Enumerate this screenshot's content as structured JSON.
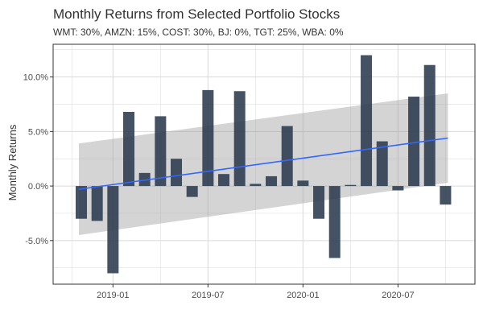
{
  "chart_data": {
    "type": "bar",
    "title": "Monthly Returns from Selected Portfolio Stocks",
    "subtitle": "WMT: 30%, AMZN: 15%, COST: 30%, BJ: 0%, TGT: 25%, WBA: 0%",
    "xlabel": "",
    "ylabel": "Monthly Returns",
    "x_ticks": [
      "2019-01",
      "2019-07",
      "2020-01",
      "2020-07"
    ],
    "y_ticks": [
      "-5.0%",
      "0.0%",
      "5.0%",
      "10.0%"
    ],
    "y_tick_values": [
      -5,
      0,
      5,
      10
    ],
    "ylim": [
      -9,
      13
    ],
    "categories": [
      "2018-11",
      "2018-12",
      "2019-01",
      "2019-02",
      "2019-03",
      "2019-04",
      "2019-05",
      "2019-06",
      "2019-07",
      "2019-08",
      "2019-09",
      "2019-10",
      "2019-11",
      "2019-12",
      "2020-01",
      "2020-02",
      "2020-03",
      "2020-04",
      "2020-05",
      "2020-06",
      "2020-07",
      "2020-08",
      "2020-09",
      "2020-10"
    ],
    "values": [
      -3.0,
      -3.2,
      -8.0,
      6.8,
      1.2,
      6.4,
      2.5,
      -1.0,
      8.8,
      1.1,
      8.7,
      0.2,
      0.9,
      5.5,
      0.5,
      -3.0,
      -6.6,
      0.1,
      12.0,
      4.1,
      -0.4,
      8.2,
      11.1,
      -1.7
    ],
    "trend": {
      "type": "linear",
      "start": -0.3,
      "end": 4.4,
      "band_start": [
        -4.5,
        3.9
      ],
      "band_end": [
        0.3,
        8.5
      ]
    },
    "grid": true,
    "legend": "none",
    "colors": {
      "bar": "#2b3a4e",
      "trend": "#3366ff",
      "band": "#999999",
      "grid": "#d9d9d9",
      "panel_border": "#333333"
    }
  }
}
